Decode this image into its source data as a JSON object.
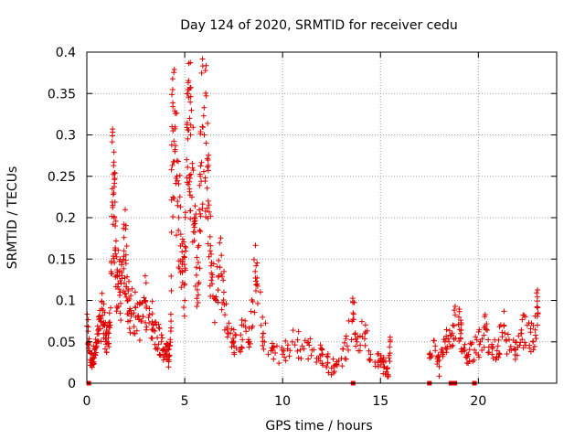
{
  "chart_data": {
    "type": "scatter",
    "title": "Day 124 of 2020, SRMTID for receiver cedu",
    "xlabel": "GPS time / hours",
    "ylabel": "SRMTID / TECUs",
    "xlim": [
      0,
      24
    ],
    "ylim": [
      0,
      0.4
    ],
    "x_ticks": [
      0,
      5,
      10,
      15,
      20
    ],
    "x_tick_labels": [
      "0",
      "5",
      "10",
      "15",
      "20"
    ],
    "y_ticks": [
      0,
      0.05,
      0.1,
      0.15,
      0.2,
      0.25,
      0.3,
      0.35,
      0.4
    ],
    "y_tick_labels": [
      "0",
      "0.05",
      "0.1",
      "0.15",
      "0.2",
      "0.25",
      "0.3",
      "0.35",
      "0.4"
    ],
    "grid": true,
    "marker": "plus",
    "color": "#e00000",
    "series": [
      {
        "name": "SRMTID",
        "points": [
          [
            0.0,
            0.069
          ],
          [
            0.1,
            0.05
          ],
          [
            0.2,
            0.025
          ],
          [
            0.3,
            0.03
          ],
          [
            0.4,
            0.04
          ],
          [
            0.5,
            0.045
          ],
          [
            0.6,
            0.06
          ],
          [
            0.7,
            0.075
          ],
          [
            0.8,
            0.082
          ],
          [
            0.9,
            0.07
          ],
          [
            1.0,
            0.05
          ],
          [
            1.1,
            0.055
          ],
          [
            1.2,
            0.07
          ],
          [
            1.3,
            0.235
          ],
          [
            1.35,
            0.228
          ],
          [
            1.4,
            0.2
          ],
          [
            1.45,
            0.19
          ],
          [
            1.5,
            0.13
          ],
          [
            1.6,
            0.12
          ],
          [
            1.7,
            0.11
          ],
          [
            1.8,
            0.13
          ],
          [
            1.9,
            0.16
          ],
          [
            2.0,
            0.155
          ],
          [
            2.1,
            0.1
          ],
          [
            2.2,
            0.09
          ],
          [
            2.4,
            0.085
          ],
          [
            2.6,
            0.08
          ],
          [
            2.8,
            0.075
          ],
          [
            3.0,
            0.1
          ],
          [
            3.2,
            0.09
          ],
          [
            3.4,
            0.07
          ],
          [
            3.6,
            0.055
          ],
          [
            3.8,
            0.05
          ],
          [
            4.0,
            0.035
          ],
          [
            4.1,
            0.04
          ],
          [
            4.2,
            0.028
          ],
          [
            4.3,
            0.075
          ],
          [
            4.35,
            0.31
          ],
          [
            4.4,
            0.305
          ],
          [
            4.5,
            0.28
          ],
          [
            4.6,
            0.25
          ],
          [
            4.7,
            0.2
          ],
          [
            4.8,
            0.18
          ],
          [
            4.9,
            0.15
          ],
          [
            5.0,
            0.12
          ],
          [
            5.1,
            0.27
          ],
          [
            5.15,
            0.35
          ],
          [
            5.2,
            0.345
          ],
          [
            5.25,
            0.32
          ],
          [
            5.3,
            0.3
          ],
          [
            5.4,
            0.26
          ],
          [
            5.5,
            0.2
          ],
          [
            5.6,
            0.14
          ],
          [
            5.7,
            0.12
          ],
          [
            5.8,
            0.25
          ],
          [
            5.9,
            0.31
          ],
          [
            6.0,
            0.3
          ],
          [
            6.1,
            0.29
          ],
          [
            6.2,
            0.22
          ],
          [
            6.3,
            0.16
          ],
          [
            6.4,
            0.12
          ],
          [
            6.6,
            0.1
          ],
          [
            6.8,
            0.14
          ],
          [
            7.0,
            0.11
          ],
          [
            7.2,
            0.06
          ],
          [
            7.5,
            0.05
          ],
          [
            7.8,
            0.04
          ],
          [
            8.0,
            0.07
          ],
          [
            8.3,
            0.05
          ],
          [
            8.6,
            0.135
          ],
          [
            8.7,
            0.12
          ],
          [
            9.0,
            0.06
          ],
          [
            9.5,
            0.04
          ],
          [
            10.0,
            0.035
          ],
          [
            10.5,
            0.05
          ],
          [
            11.0,
            0.045
          ],
          [
            11.5,
            0.04
          ],
          [
            12.0,
            0.035
          ],
          [
            12.3,
            0.025
          ],
          [
            12.6,
            0.02
          ],
          [
            13.0,
            0.03
          ],
          [
            13.3,
            0.045
          ],
          [
            13.6,
            0.085
          ],
          [
            13.8,
            0.05
          ],
          [
            14.2,
            0.06
          ],
          [
            14.5,
            0.035
          ],
          [
            15.0,
            0.03
          ],
          [
            15.2,
            0.02
          ],
          [
            15.4,
            0.01
          ],
          [
            15.5,
            0.05
          ],
          [
            17.5,
            0.035
          ],
          [
            17.8,
            0.045
          ],
          [
            18.0,
            0.02
          ],
          [
            18.3,
            0.05
          ],
          [
            18.5,
            0.05
          ],
          [
            18.7,
            0.07
          ],
          [
            19.0,
            0.08
          ],
          [
            19.1,
            0.06
          ],
          [
            19.3,
            0.04
          ],
          [
            19.5,
            0.035
          ],
          [
            19.8,
            0.04
          ],
          [
            20.1,
            0.05
          ],
          [
            20.4,
            0.065
          ],
          [
            20.7,
            0.035
          ],
          [
            21.0,
            0.045
          ],
          [
            21.3,
            0.07
          ],
          [
            21.6,
            0.04
          ],
          [
            21.9,
            0.04
          ],
          [
            22.2,
            0.06
          ],
          [
            22.5,
            0.07
          ],
          [
            22.8,
            0.05
          ],
          [
            23.0,
            0.092
          ],
          [
            23.05,
            0.085
          ]
        ]
      }
    ],
    "zero_markers_x": [
      0.1,
      13.6,
      17.5,
      18.6,
      18.8,
      19.8
    ]
  }
}
